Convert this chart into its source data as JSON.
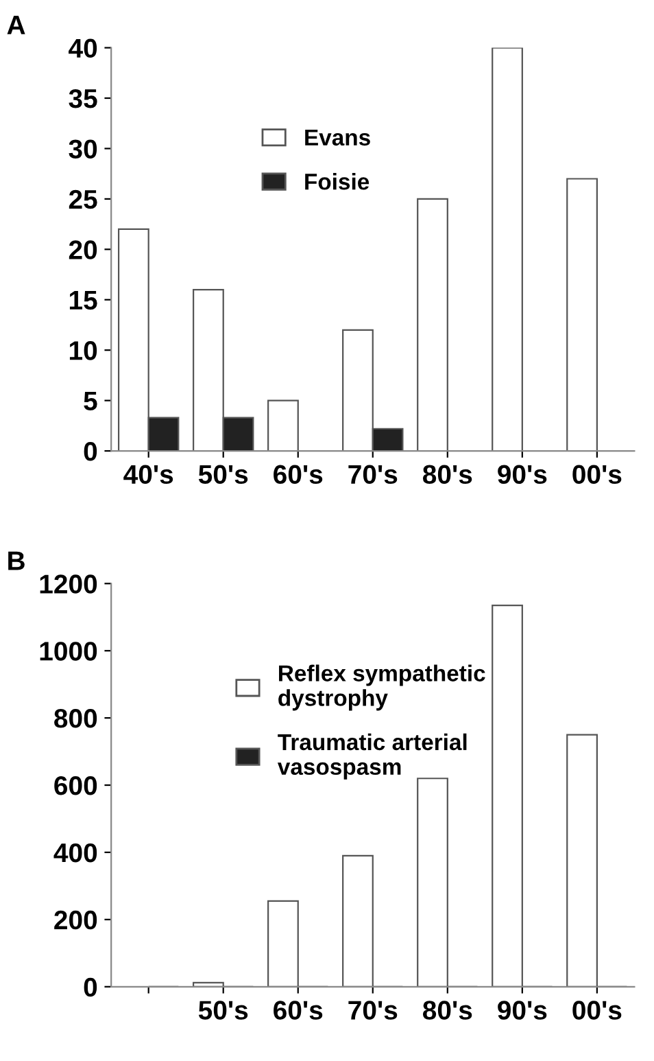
{
  "chart_data": [
    {
      "type": "bar",
      "title": "A",
      "categories": [
        "40's",
        "50's",
        "60's",
        "70's",
        "80's",
        "90's",
        "00's"
      ],
      "ylim": [
        0,
        40
      ],
      "yticks": [
        0,
        5,
        10,
        15,
        20,
        25,
        30,
        35,
        40
      ],
      "grid": false,
      "legend": "top left",
      "series": [
        {
          "name": "Evans",
          "color": "#ffffff",
          "values": [
            22,
            16,
            5,
            12,
            25,
            40,
            27
          ]
        },
        {
          "name": "Foisie",
          "color": "#222222",
          "values": [
            3.3,
            3.3,
            0,
            2.2,
            0,
            0,
            0
          ]
        }
      ]
    },
    {
      "type": "bar",
      "title": "B",
      "categories": [
        null,
        "50's",
        "60's",
        "70's",
        "80's",
        "90's",
        "00's"
      ],
      "ylim": [
        0,
        1200
      ],
      "yticks": [
        0,
        200,
        400,
        600,
        800,
        1000,
        1200
      ],
      "grid": false,
      "legend": "top left",
      "series": [
        {
          "name": "Reflex sympathetic\ndystrophy",
          "color": "#ffffff",
          "values": [
            0,
            12,
            255,
            390,
            620,
            1135,
            750
          ]
        },
        {
          "name": "Traumatic arterial\nvasospasm",
          "color": "#222222",
          "values": [
            0,
            0,
            0,
            0,
            0,
            0,
            0
          ]
        }
      ]
    }
  ]
}
